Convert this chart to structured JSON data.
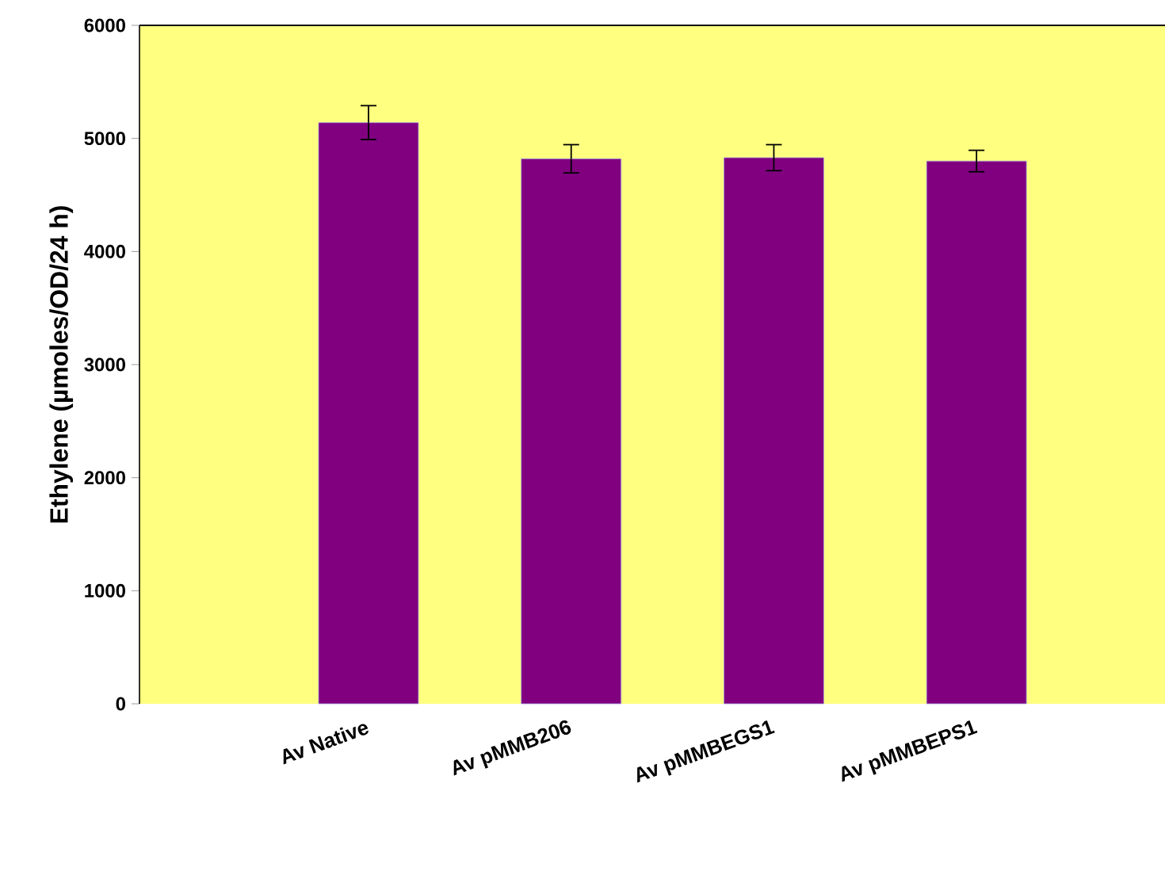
{
  "chart_data": {
    "type": "bar",
    "ylabel": "Ethylene (µmoles/OD/24 h)",
    "categories": [
      "Av Native",
      "Av pMMB206",
      "Av pMMBEGS1",
      "Av pMMBEPS1"
    ],
    "values": [
      5140,
      4820,
      4830,
      4800
    ],
    "errors": [
      150,
      125,
      115,
      95
    ],
    "color": "#800080",
    "ylim": [
      0,
      6000
    ],
    "yticks": [
      0,
      1000,
      2000,
      3000,
      4000,
      5000,
      6000
    ],
    "grid": false
  }
}
